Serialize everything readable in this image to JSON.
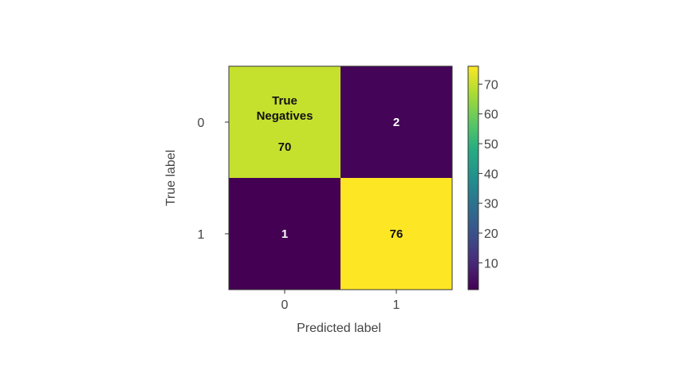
{
  "chart_data": {
    "type": "heatmap",
    "title": "",
    "xlabel": "Predicted label",
    "ylabel": "True label",
    "x_categories": [
      "0",
      "1"
    ],
    "y_categories": [
      "0",
      "1"
    ],
    "matrix": [
      [
        70,
        2
      ],
      [
        1,
        76
      ]
    ],
    "cell_labels": [
      [
        "70",
        "2"
      ],
      [
        "1",
        "76"
      ]
    ],
    "annotation": {
      "row": 0,
      "col": 0,
      "lines": [
        "True",
        "Negatives"
      ]
    },
    "colorbar": {
      "ticks": [
        10,
        20,
        30,
        40,
        50,
        60,
        70
      ],
      "range": [
        1,
        76
      ],
      "colormap": "viridis"
    },
    "colors": {
      "low": "#440154",
      "high": "#fde725",
      "cell_text_light": "#ffffff",
      "cell_text_dark": "#111111",
      "frame": "#333333",
      "label_text": "#444444"
    }
  }
}
